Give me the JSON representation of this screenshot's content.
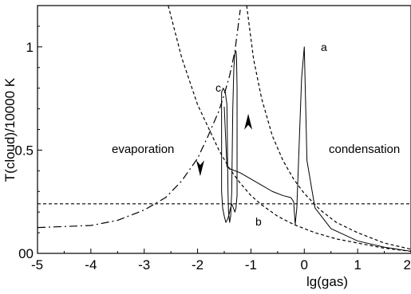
{
  "chart_data": {
    "type": "line",
    "xlabel": "lg(gas)",
    "ylabel": "T(cloud)/10000 K",
    "xlim": [
      -5,
      2
    ],
    "ylim": [
      0,
      1.2
    ],
    "xticks": [
      "-5",
      "-4",
      "-3",
      "-2",
      "-1",
      "0",
      "1",
      "2"
    ],
    "yticks": [
      "00",
      "0.5",
      "1"
    ],
    "grid": false,
    "region_labels": {
      "evaporation": "evaporation",
      "condensation": "condensation"
    },
    "curve_labels": {
      "a": "a",
      "b": "b",
      "c": "c"
    },
    "series": [
      {
        "style": "dash-dot",
        "x": [
          -5,
          -4,
          -3.5,
          -3,
          -2.6,
          -2.3,
          -2.0,
          -1.8,
          -1.6,
          -1.5,
          -1.4,
          -1.3,
          -1.2
        ],
        "y": [
          0.125,
          0.135,
          0.16,
          0.21,
          0.27,
          0.35,
          0.46,
          0.57,
          0.69,
          0.77,
          0.86,
          0.98,
          1.18
        ]
      },
      {
        "name": "b",
        "style": "dashed",
        "x": [
          -2.55,
          -2.3,
          -2.0,
          -1.8,
          -1.6,
          -1.4,
          -1.2,
          -1.0,
          -0.8,
          -0.5,
          -0.2,
          0.2,
          0.6,
          1.0,
          1.5,
          2.0
        ],
        "y": [
          1.2,
          0.95,
          0.72,
          0.61,
          0.5,
          0.41,
          0.34,
          0.28,
          0.235,
          0.18,
          0.14,
          0.1,
          0.07,
          0.05,
          0.025,
          0.01
        ]
      },
      {
        "name": "c",
        "style": "dashed",
        "x": [
          -1.08,
          -0.95,
          -0.8,
          -0.6,
          -0.4,
          -0.2,
          0.0,
          0.3,
          0.6,
          1.0,
          1.5,
          2.0
        ],
        "y": [
          1.2,
          0.94,
          0.75,
          0.57,
          0.45,
          0.36,
          0.29,
          0.21,
          0.15,
          0.1,
          0.05,
          0.02
        ]
      },
      {
        "style": "dashed",
        "x": [
          -5,
          2
        ],
        "y": [
          0.24,
          0.24
        ]
      },
      {
        "name": "a",
        "style": "solid",
        "x": [
          -1.5,
          -1.45,
          -1.4,
          -1.2,
          -1.0,
          -0.8,
          -0.6,
          -0.4,
          -0.25,
          -0.2,
          -0.17,
          -0.14,
          -0.1,
          -0.05,
          0.0,
          0.05,
          0.2,
          0.5,
          1.0,
          1.5,
          2.0
        ],
        "y": [
          0.71,
          0.42,
          0.41,
          0.39,
          0.36,
          0.33,
          0.3,
          0.28,
          0.27,
          0.25,
          0.14,
          0.22,
          0.5,
          0.85,
          1.0,
          0.45,
          0.22,
          0.12,
          0.06,
          0.03,
          0.01
        ]
      },
      {
        "style": "solid",
        "x": [
          -1.55,
          -1.55,
          -1.52,
          -1.48,
          -1.45,
          -1.43,
          -1.42,
          -1.4,
          -1.38,
          -1.36,
          -1.34,
          -1.32,
          -1.3,
          -1.28,
          -1.27,
          -1.26,
          -1.26,
          -1.28,
          -1.3,
          -1.33,
          -1.36,
          -1.4,
          -1.43,
          -1.47,
          -1.5,
          -1.53,
          -1.55
        ],
        "y": [
          0.3,
          0.78,
          0.8,
          0.78,
          0.72,
          0.3,
          0.2,
          0.15,
          0.18,
          0.3,
          0.7,
          0.9,
          0.97,
          0.98,
          0.95,
          0.8,
          0.28,
          0.22,
          0.2,
          0.22,
          0.24,
          0.2,
          0.17,
          0.15,
          0.18,
          0.22,
          0.3
        ]
      }
    ],
    "arrows": [
      {
        "x": -1.95,
        "y": 0.42,
        "direction": "down"
      },
      {
        "x": -1.05,
        "y": 0.63,
        "direction": "up"
      }
    ]
  }
}
